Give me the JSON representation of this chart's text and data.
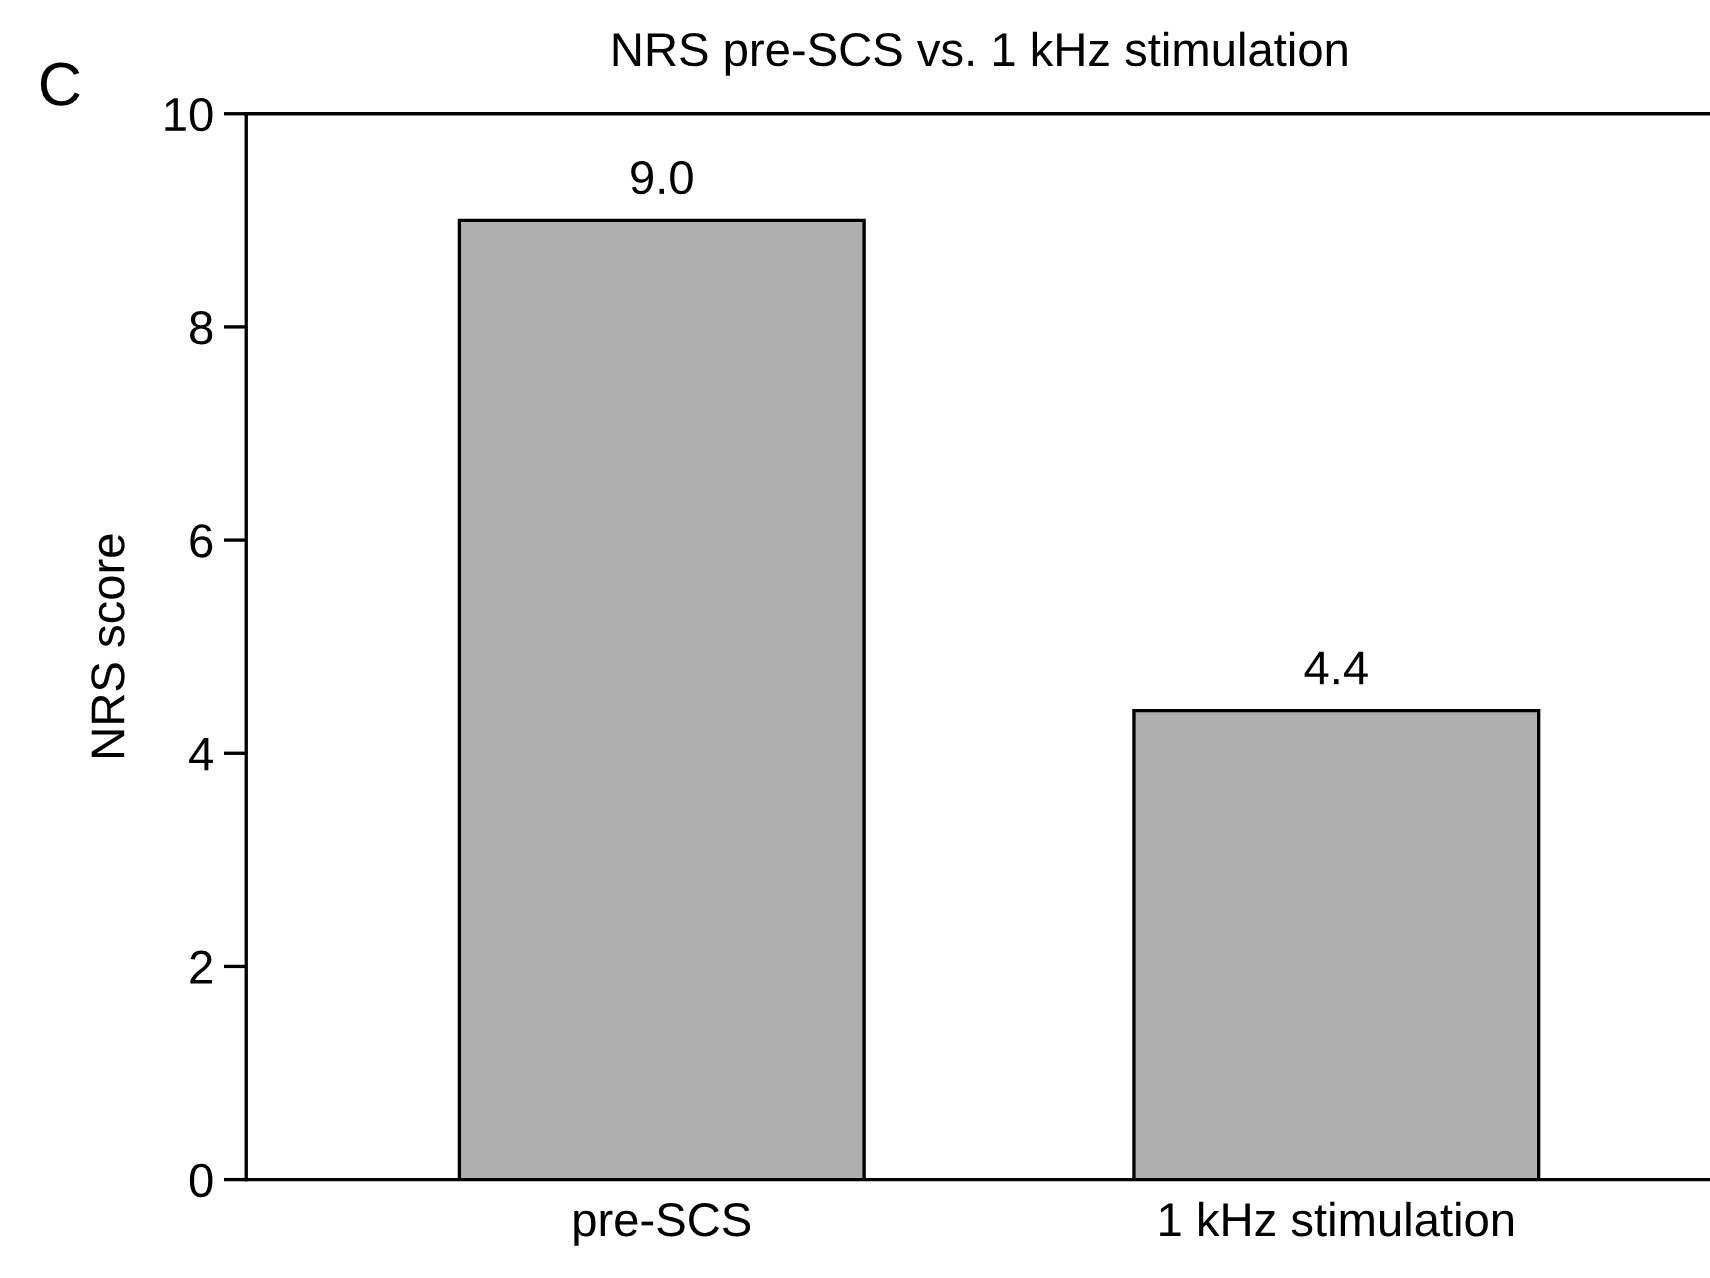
{
  "chart_data": {
    "type": "bar",
    "title": "NRS pre-SCS vs. 1 kHz stimulation",
    "ylabel": "NRS score",
    "categories": [
      "pre-SCS",
      "1 kHz stimulation"
    ],
    "values": [
      9.0,
      4.4
    ],
    "value_labels": [
      "9.0",
      "4.4"
    ],
    "color": "#b0b0b0",
    "ylim": [
      0,
      10
    ],
    "yticks": [
      0,
      2,
      4,
      6,
      8,
      10
    ],
    "grid": false,
    "legend": false,
    "annotations": [
      "C"
    ]
  }
}
